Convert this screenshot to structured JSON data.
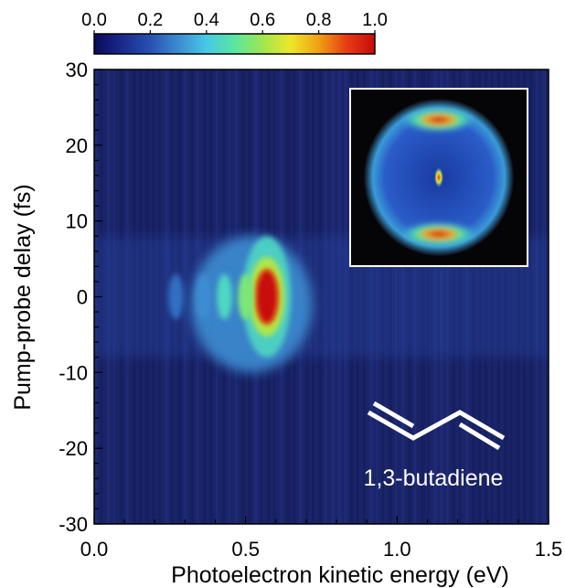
{
  "chart_data": {
    "type": "heatmap",
    "xlabel": "Photoelectron kinetic energy (eV)",
    "ylabel": "Pump-probe delay (fs)",
    "xlim": [
      0.0,
      1.5
    ],
    "ylim": [
      -30,
      30
    ],
    "x_ticks": [
      "0.0",
      "0.5",
      "1.0",
      "1.5"
    ],
    "y_ticks": [
      "30",
      "20",
      "10",
      "0",
      "-10",
      "-20",
      "-30"
    ],
    "colorbar": {
      "range": [
        0.0,
        1.0
      ],
      "ticks": [
        "0.0",
        "0.2",
        "0.4",
        "0.6",
        "0.8",
        "1.0"
      ],
      "colormap": [
        "#0a0a5a",
        "#1a2a8c",
        "#2850b4",
        "#3c8cd2",
        "#46c8e6",
        "#5ae6a0",
        "#a0e650",
        "#f0e628",
        "#f0a014",
        "#e63c14",
        "#c80a0a"
      ]
    },
    "background_color": "#1a2468",
    "peaks": [
      {
        "energy": 0.57,
        "delay": 0,
        "intensity": 1.0
      },
      {
        "energy": 0.5,
        "delay": 0,
        "intensity": 0.55
      },
      {
        "energy": 0.43,
        "delay": 0,
        "intensity": 0.45
      },
      {
        "energy": 0.36,
        "delay": 0,
        "intensity": 0.3
      },
      {
        "energy": 0.27,
        "delay": 0,
        "intensity": 0.25
      }
    ],
    "annotation": "1,3-butadiene",
    "inset": {
      "description_type": "velocity-map image"
    }
  }
}
